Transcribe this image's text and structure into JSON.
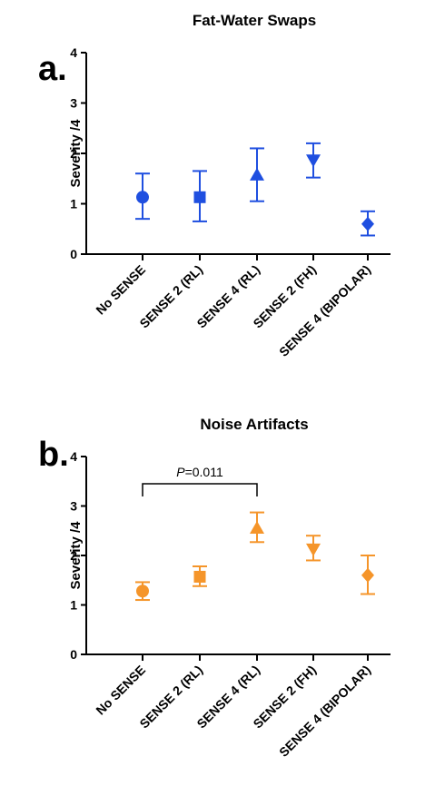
{
  "chart_data": [
    {
      "type": "scatter",
      "panel_letter": "a.",
      "title": "Fat-Water Swaps",
      "ylabel": "Severity /4",
      "ylim": [
        0,
        4
      ],
      "yticks": [
        "0",
        "1",
        "2",
        "3",
        "4"
      ],
      "categories": [
        "No SENSE",
        "SENSE 2 (RL)",
        "SENSE 4 (RL)",
        "SENSE 2 (FH)",
        "SENSE 4 (BIPOLAR)"
      ],
      "markers": [
        "circle",
        "square",
        "triangle-up",
        "triangle-down",
        "diamond"
      ],
      "color": "#1f4fe0",
      "values": [
        1.13,
        1.13,
        1.57,
        1.87,
        0.6
      ],
      "error_low": [
        0.7,
        0.65,
        1.05,
        1.52,
        0.37
      ],
      "error_high": [
        1.6,
        1.65,
        2.1,
        2.2,
        0.85
      ],
      "grid": false
    },
    {
      "type": "scatter",
      "panel_letter": "b.",
      "title": "Noise Artifacts",
      "ylabel": "Severity /4",
      "ylim": [
        0,
        4
      ],
      "yticks": [
        "0",
        "1",
        "2",
        "3",
        "4"
      ],
      "categories": [
        "No SENSE",
        "SENSE 2 (RL)",
        "SENSE 4 (RL)",
        "SENSE 2 (FH)",
        "SENSE 4 (BIPOLAR)"
      ],
      "markers": [
        "circle",
        "square",
        "triangle-up",
        "triangle-down",
        "diamond"
      ],
      "color": "#f5952a",
      "values": [
        1.28,
        1.57,
        2.55,
        2.13,
        1.6
      ],
      "error_low": [
        1.1,
        1.38,
        2.27,
        1.9,
        1.22
      ],
      "error_high": [
        1.46,
        1.78,
        2.87,
        2.4,
        2.0
      ],
      "grid": false,
      "annotation": {
        "p_label": "P",
        "p_value": "=0.011",
        "from_category": "No SENSE",
        "to_category": "SENSE 4 (RL)",
        "level": 3.45
      }
    }
  ]
}
